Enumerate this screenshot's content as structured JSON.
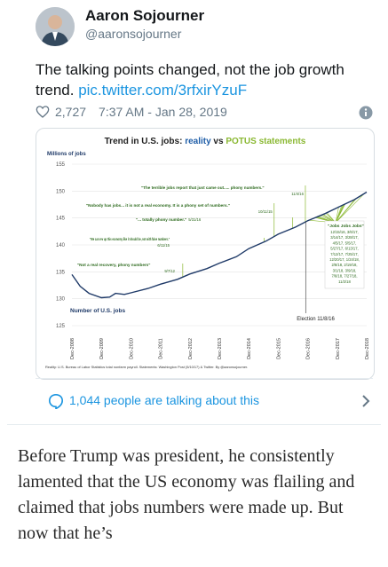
{
  "tweet": {
    "author_name": "Aaron Sojourner",
    "author_handle": "@aaronsojourner",
    "text": "The talking points changed, not the job growth trend. ",
    "link": "pic.twitter.com/3rfxirYzuF",
    "likes": "2,727",
    "timestamp": "7:37 AM - Jan 28, 2019",
    "heart_icon": "heart-outline-icon",
    "info_icon": "info-circle-icon",
    "talking_about": "1,044 people are talking about this",
    "colors": {
      "link": "#1b95e0",
      "muted": "#657786",
      "text": "#14171a"
    }
  },
  "chart_data": {
    "type": "line",
    "title_prefix": "Trend in U.S. jobs: ",
    "title_reality": "reality",
    "title_vs": " vs ",
    "title_potus": "POTUS statements",
    "ylabel": "Millions of jobs",
    "ylim": [
      125,
      155
    ],
    "yticks": [
      125,
      130,
      135,
      140,
      145,
      150,
      155
    ],
    "xticks": [
      "Dec-2008",
      "Dec-2009",
      "Dec-2010",
      "Dec-2011",
      "Dec-2012",
      "Dec-2013",
      "Dec-2014",
      "Dec-2015",
      "Dec-2016",
      "Dec-2017",
      "Dec-2018"
    ],
    "series_label": "Number of U.S. jobs",
    "series": [
      {
        "x": 2008.92,
        "y": 134.5
      },
      {
        "x": 2009.2,
        "y": 132.3
      },
      {
        "x": 2009.5,
        "y": 131.0
      },
      {
        "x": 2009.92,
        "y": 130.2
      },
      {
        "x": 2010.2,
        "y": 130.3
      },
      {
        "x": 2010.4,
        "y": 131.0
      },
      {
        "x": 2010.7,
        "y": 130.8
      },
      {
        "x": 2010.92,
        "y": 131.1
      },
      {
        "x": 2011.5,
        "y": 131.9
      },
      {
        "x": 2011.92,
        "y": 132.7
      },
      {
        "x": 2012.5,
        "y": 133.6
      },
      {
        "x": 2012.92,
        "y": 134.6
      },
      {
        "x": 2013.5,
        "y": 135.6
      },
      {
        "x": 2013.92,
        "y": 136.6
      },
      {
        "x": 2014.5,
        "y": 137.8
      },
      {
        "x": 2014.92,
        "y": 139.3
      },
      {
        "x": 2015.5,
        "y": 140.7
      },
      {
        "x": 2015.92,
        "y": 142.0
      },
      {
        "x": 2016.5,
        "y": 143.3
      },
      {
        "x": 2016.92,
        "y": 144.5
      },
      {
        "x": 2017.5,
        "y": 145.8
      },
      {
        "x": 2017.92,
        "y": 146.9
      },
      {
        "x": 2018.5,
        "y": 148.4
      },
      {
        "x": 2018.92,
        "y": 149.8
      }
    ],
    "annotations": [
      {
        "text": "\"Not a real recovery, phony numbers\"",
        "date": "9/7/12",
        "x": 2012.68,
        "y": 133.9
      },
      {
        "text": "\"We can rev up this economy like it should be, not with false numbers.\"",
        "date": "6/11/15",
        "x": 2015.44,
        "y": 140.5
      },
      {
        "text": "\"... totally phony number.\"",
        "date": "5/31/16",
        "x": 2016.41,
        "y": 143.7
      },
      {
        "text": "\"Nobody has jobs... it is not a real economy. It is a phony set of numbers.\"",
        "date": "10/11/15",
        "x": 2015.78,
        "y": 141.6
      },
      {
        "text": "\"The terrible jobs report that just came out..... phony numbers.\"",
        "date": "11/4/16",
        "x": 2016.84,
        "y": 144.4
      }
    ],
    "jobs_box_title": "\"Jobs Jobs Jobs\"",
    "jobs_box_dates": [
      "12/15/16, 3/6/17,",
      "3/14/17, 3/28/17,",
      "4/5/17, 5/5/17,",
      "5/27/17, 6/13/17,",
      "7/12/17, 7/25/17,",
      "12/20/17, 1/24/18,",
      "2/8/18, 2/19/18,",
      "3/1/18, 3/9/18,",
      "7/6/18, 7/27/18,",
      "11/2/18"
    ],
    "jobs_points_x": [
      2016.96,
      2017.18,
      2017.21,
      2017.24,
      2017.27,
      2017.35,
      2017.41,
      2017.45,
      2017.53,
      2017.57,
      2017.97,
      2018.07,
      2018.11,
      2018.14,
      2018.17,
      2018.19,
      2018.51,
      2018.57,
      2018.84
    ],
    "election_label": "Election 11/8/16",
    "election_x": 2016.85,
    "source": "Reality: U.S. Bureau of Labor Statistics total nonfarm payroll. Statements: Washington Post (5/10/17) & Twitter. By @aaronsojourner.",
    "colors": {
      "line": "#1f3a68",
      "reality": "#1f5ea8",
      "potus": "#8ab832",
      "jobs_lines": "#8ab832",
      "annotation": "#2e6b1f"
    }
  },
  "article": {
    "text": "Before Trump was president, he consistently lamented that the US economy was flailing and claimed that jobs numbers were made up. But now that he’s"
  }
}
